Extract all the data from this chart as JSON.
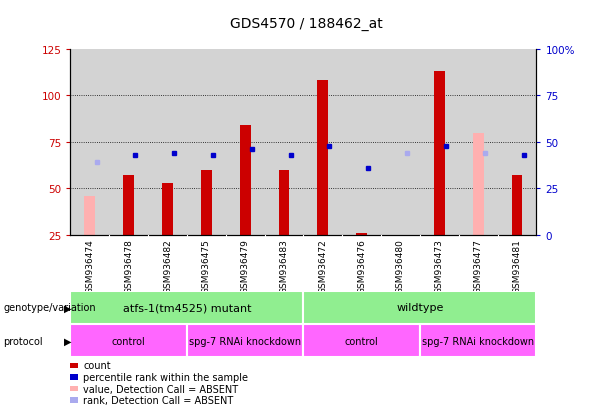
{
  "title": "GDS4570 / 188462_at",
  "samples": [
    "GSM936474",
    "GSM936478",
    "GSM936482",
    "GSM936475",
    "GSM936479",
    "GSM936483",
    "GSM936472",
    "GSM936476",
    "GSM936480",
    "GSM936473",
    "GSM936477",
    "GSM936481"
  ],
  "count_values": [
    null,
    57,
    53,
    60,
    84,
    60,
    108,
    26,
    null,
    113,
    null,
    57
  ],
  "count_absent": [
    46,
    null,
    null,
    null,
    null,
    null,
    null,
    null,
    null,
    null,
    80,
    null
  ],
  "rank_pct": [
    39,
    43,
    44,
    43,
    46,
    43,
    48,
    36,
    44,
    48,
    44,
    43
  ],
  "rank_absent": [
    true,
    false,
    false,
    false,
    false,
    false,
    false,
    false,
    true,
    false,
    true,
    false
  ],
  "ylim_left": [
    25,
    125
  ],
  "ylim_right": [
    0,
    100
  ],
  "yticks_left": [
    25,
    50,
    75,
    100,
    125
  ],
  "yticks_right": [
    0,
    25,
    50,
    75,
    100
  ],
  "yticklabels_right": [
    "0",
    "25",
    "50",
    "75",
    "100%"
  ],
  "bar_color_red": "#cc0000",
  "bar_color_pink": "#ffb0b0",
  "dot_color_blue": "#0000cc",
  "dot_color_lightblue": "#aaaaee",
  "bg_color": "#d3d3d3",
  "grid_color": "#c0c0c0",
  "genotype_color": "#90ee90",
  "protocol_color": "#ff66ff",
  "genotype_groups": [
    {
      "label": "atfs-1(tm4525) mutant",
      "start": 0,
      "end": 6
    },
    {
      "label": "wildtype",
      "start": 6,
      "end": 12
    }
  ],
  "protocol_groups": [
    {
      "label": "control",
      "start": 0,
      "end": 3
    },
    {
      "label": "spg-7 RNAi knockdown",
      "start": 3,
      "end": 6
    },
    {
      "label": "control",
      "start": 6,
      "end": 9
    },
    {
      "label": "spg-7 RNAi knockdown",
      "start": 9,
      "end": 12
    }
  ],
  "legend_items": [
    {
      "color": "#cc0000",
      "label": "count"
    },
    {
      "color": "#0000cc",
      "label": "percentile rank within the sample"
    },
    {
      "color": "#ffb0b0",
      "label": "value, Detection Call = ABSENT"
    },
    {
      "color": "#aaaaee",
      "label": "rank, Detection Call = ABSENT"
    }
  ]
}
